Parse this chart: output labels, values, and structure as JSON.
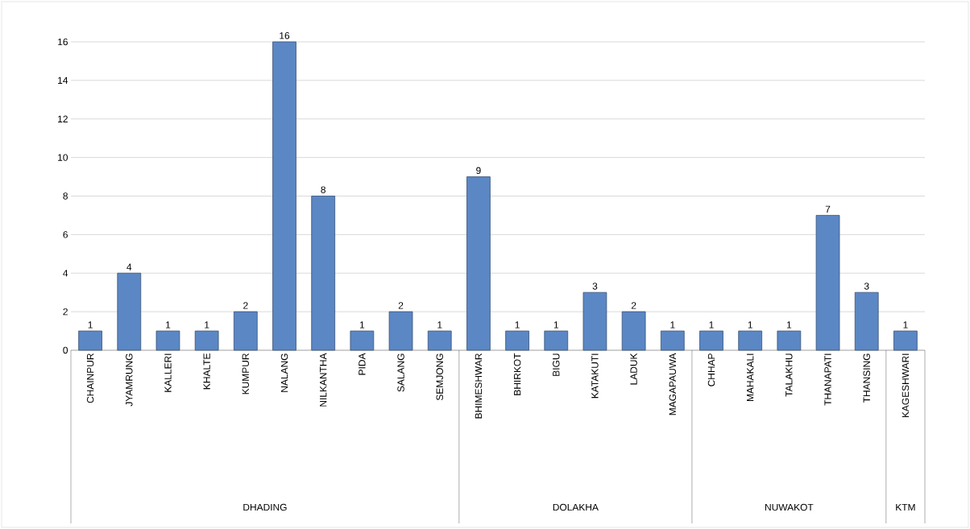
{
  "chart_data": {
    "type": "bar",
    "categories": [
      "CHAINPUR",
      "JYAMRUNG",
      "KALLERI",
      "KHALTE",
      "KUMPUR",
      "NALANG",
      "NILKANTHA",
      "PIDA",
      "SALANG",
      "SEMJONG",
      "BHIMESHWAR",
      "BHIRKOT",
      "BIGU",
      "KATAKUTI",
      "LADUK",
      "MAGAPAUWA",
      "CHHAP",
      "MAHAKALI",
      "TALAKHU",
      "THANAPATI",
      "THANSING",
      "KAGESHWARI"
    ],
    "values": [
      1,
      4,
      1,
      1,
      2,
      16,
      8,
      1,
      2,
      1,
      9,
      1,
      1,
      3,
      2,
      1,
      1,
      1,
      1,
      7,
      3,
      1
    ],
    "color": "#5b87c5",
    "ylim": [
      0,
      16
    ],
    "yticks": [
      0,
      2,
      4,
      6,
      8,
      10,
      12,
      14,
      16
    ],
    "grid": "y",
    "data_labels": true,
    "annotations": [
      "DHADING",
      "DOLAKHA",
      "NUWAKOT",
      "KTM"
    ]
  }
}
